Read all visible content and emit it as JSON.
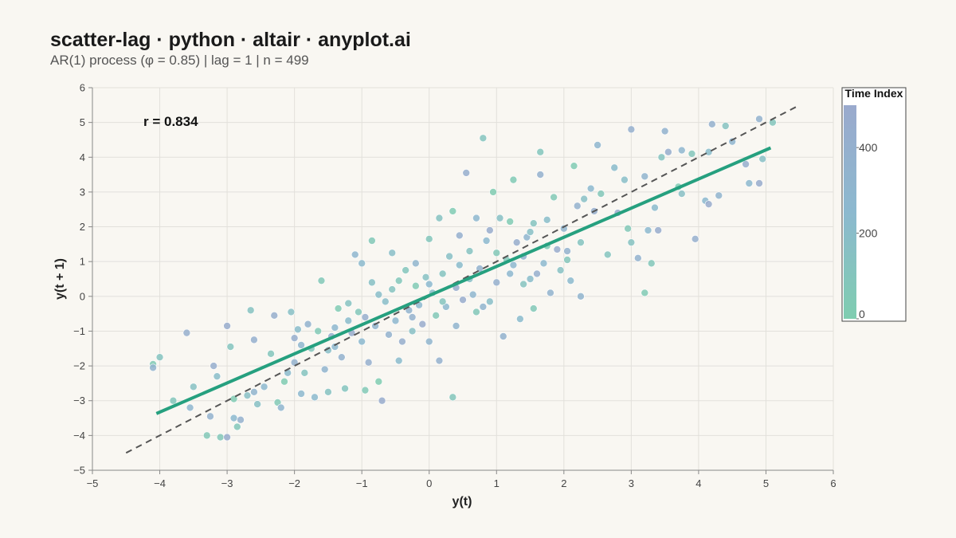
{
  "title": "scatter-lag · python · altair · anyplot.ai",
  "subtitle": "AR(1) process (φ = 0.85) | lag = 1 | n = 499",
  "chart_data": {
    "type": "scatter",
    "xlabel": "y(t)",
    "ylabel": "y(t + 1)",
    "xlim": [
      -5,
      6
    ],
    "ylim": [
      -5,
      6
    ],
    "x_ticks": [
      -5,
      -4,
      -3,
      -2,
      -1,
      0,
      1,
      2,
      3,
      4,
      5,
      6
    ],
    "y_ticks": [
      -5,
      -4,
      -3,
      -2,
      -1,
      0,
      1,
      2,
      3,
      4,
      5,
      6
    ],
    "x_tick_labels": [
      "−5",
      "−4",
      "−3",
      "−2",
      "−1",
      "0",
      "1",
      "2",
      "3",
      "4",
      "5",
      "6"
    ],
    "y_tick_labels": [
      "−5",
      "−4",
      "−3",
      "−2",
      "−1",
      "0",
      "1",
      "2",
      "3",
      "4",
      "5",
      "6"
    ],
    "grid": true,
    "annotation": "r = 0.834",
    "legend": {
      "title": "Time Index",
      "position": "right",
      "min": 0,
      "max": 499,
      "ticks": [
        0,
        200,
        400
      ],
      "colors": [
        "#7fcdb0",
        "#8cb9cf",
        "#9aaacd"
      ]
    },
    "reference_line": {
      "label": "y = x",
      "from": [
        -4.5,
        -4.5
      ],
      "to": [
        5.5,
        5.5
      ],
      "color": "#555555",
      "dashed": true
    },
    "regression_line": {
      "from": [
        -4.05,
        -3.37
      ],
      "to": [
        5.07,
        4.27
      ],
      "color": "#26a07f"
    },
    "points": [
      {
        "x": -4.1,
        "y": -1.95,
        "t": 40
      },
      {
        "x": -4.1,
        "y": -2.05,
        "t": 350
      },
      {
        "x": -4.0,
        "y": -1.75,
        "t": 120
      },
      {
        "x": -3.8,
        "y": -3.0,
        "t": 90
      },
      {
        "x": -3.6,
        "y": -1.05,
        "t": 420
      },
      {
        "x": -3.55,
        "y": -3.2,
        "t": 300
      },
      {
        "x": -3.5,
        "y": -2.6,
        "t": 150
      },
      {
        "x": -3.3,
        "y": -4.0,
        "t": 60
      },
      {
        "x": -3.25,
        "y": -3.45,
        "t": 380
      },
      {
        "x": -3.2,
        "y": -2.0,
        "t": 430
      },
      {
        "x": -3.15,
        "y": -2.3,
        "t": 200
      },
      {
        "x": -3.1,
        "y": -4.05,
        "t": 70
      },
      {
        "x": -3.0,
        "y": -4.05,
        "t": 460
      },
      {
        "x": -3.0,
        "y": -0.85,
        "t": 470
      },
      {
        "x": -2.95,
        "y": -1.45,
        "t": 110
      },
      {
        "x": -2.9,
        "y": -3.5,
        "t": 250
      },
      {
        "x": -2.9,
        "y": -2.95,
        "t": 30
      },
      {
        "x": -2.85,
        "y": -3.75,
        "t": 80
      },
      {
        "x": -2.8,
        "y": -3.55,
        "t": 400
      },
      {
        "x": -2.7,
        "y": -2.85,
        "t": 180
      },
      {
        "x": -2.65,
        "y": -0.4,
        "t": 140
      },
      {
        "x": -2.6,
        "y": -2.75,
        "t": 330
      },
      {
        "x": -2.55,
        "y": -3.1,
        "t": 160
      },
      {
        "x": -2.6,
        "y": -1.25,
        "t": 410
      },
      {
        "x": -2.45,
        "y": -2.6,
        "t": 270
      },
      {
        "x": -2.35,
        "y": -1.65,
        "t": 100
      },
      {
        "x": -2.3,
        "y": -0.55,
        "t": 440
      },
      {
        "x": -2.25,
        "y": -3.05,
        "t": 50
      },
      {
        "x": -2.2,
        "y": -3.2,
        "t": 310
      },
      {
        "x": -2.15,
        "y": -2.45,
        "t": 20
      },
      {
        "x": -2.1,
        "y": -2.2,
        "t": 230
      },
      {
        "x": -2.05,
        "y": -0.45,
        "t": 170
      },
      {
        "x": -2.0,
        "y": -1.9,
        "t": 390
      },
      {
        "x": -2.0,
        "y": -1.2,
        "t": 450
      },
      {
        "x": -1.95,
        "y": -0.95,
        "t": 210
      },
      {
        "x": -1.9,
        "y": -2.8,
        "t": 260
      },
      {
        "x": -1.85,
        "y": -2.2,
        "t": 120
      },
      {
        "x": -1.8,
        "y": -0.8,
        "t": 360
      },
      {
        "x": -1.75,
        "y": -1.5,
        "t": 90
      },
      {
        "x": -1.7,
        "y": -2.9,
        "t": 240
      },
      {
        "x": -1.6,
        "y": 0.45,
        "t": 60
      },
      {
        "x": -1.55,
        "y": -2.1,
        "t": 340
      },
      {
        "x": -1.5,
        "y": -1.55,
        "t": 190
      },
      {
        "x": -1.5,
        "y": -2.75,
        "t": 140
      },
      {
        "x": -1.45,
        "y": -1.15,
        "t": 420
      },
      {
        "x": -1.4,
        "y": -0.9,
        "t": 280
      },
      {
        "x": -1.35,
        "y": -0.35,
        "t": 30
      },
      {
        "x": -1.3,
        "y": -1.75,
        "t": 370
      },
      {
        "x": -1.25,
        "y": -2.65,
        "t": 110
      },
      {
        "x": -1.2,
        "y": -0.7,
        "t": 220
      },
      {
        "x": -1.15,
        "y": -1.05,
        "t": 480
      },
      {
        "x": -1.1,
        "y": 1.2,
        "t": 300
      },
      {
        "x": -1.05,
        "y": -0.45,
        "t": 80
      },
      {
        "x": -1.0,
        "y": -1.3,
        "t": 250
      },
      {
        "x": -0.95,
        "y": -2.7,
        "t": 50
      },
      {
        "x": -0.9,
        "y": -1.9,
        "t": 410
      },
      {
        "x": -0.85,
        "y": 0.4,
        "t": 160
      },
      {
        "x": -0.8,
        "y": -0.85,
        "t": 330
      },
      {
        "x": -0.75,
        "y": -2.45,
        "t": 10
      },
      {
        "x": -0.7,
        "y": -3.0,
        "t": 460
      },
      {
        "x": -0.65,
        "y": -0.15,
        "t": 200
      },
      {
        "x": -0.6,
        "y": -1.1,
        "t": 380
      },
      {
        "x": -0.55,
        "y": 0.2,
        "t": 130
      },
      {
        "x": -0.5,
        "y": -0.7,
        "t": 290
      },
      {
        "x": -0.45,
        "y": -1.85,
        "t": 230
      },
      {
        "x": -0.4,
        "y": -1.3,
        "t": 440
      },
      {
        "x": -0.35,
        "y": 0.75,
        "t": 100
      },
      {
        "x": -0.3,
        "y": -0.4,
        "t": 350
      },
      {
        "x": -0.25,
        "y": -1.0,
        "t": 180
      },
      {
        "x": -0.2,
        "y": 0.3,
        "t": 40
      },
      {
        "x": -0.15,
        "y": -0.25,
        "t": 270
      },
      {
        "x": -0.1,
        "y": -0.8,
        "t": 490
      },
      {
        "x": -0.05,
        "y": 0.55,
        "t": 150
      },
      {
        "x": 0.0,
        "y": -1.3,
        "t": 320
      },
      {
        "x": 0.05,
        "y": 0.1,
        "t": 210
      },
      {
        "x": 0.1,
        "y": -0.55,
        "t": 60
      },
      {
        "x": 0.15,
        "y": -1.85,
        "t": 400
      },
      {
        "x": 0.2,
        "y": 0.65,
        "t": 120
      },
      {
        "x": 0.25,
        "y": -0.3,
        "t": 260
      },
      {
        "x": 0.3,
        "y": 1.15,
        "t": 170
      },
      {
        "x": 0.35,
        "y": 2.45,
        "t": 30
      },
      {
        "x": 0.35,
        "y": -2.9,
        "t": 90
      },
      {
        "x": 0.4,
        "y": -0.85,
        "t": 340
      },
      {
        "x": 0.45,
        "y": 0.9,
        "t": 220
      },
      {
        "x": 0.5,
        "y": -0.1,
        "t": 470
      },
      {
        "x": 0.55,
        "y": 3.55,
        "t": 430
      },
      {
        "x": 0.6,
        "y": 1.3,
        "t": 140
      },
      {
        "x": 0.65,
        "y": 0.05,
        "t": 300
      },
      {
        "x": 0.7,
        "y": -0.45,
        "t": 70
      },
      {
        "x": 0.75,
        "y": 0.8,
        "t": 380
      },
      {
        "x": 0.8,
        "y": 4.55,
        "t": 110
      },
      {
        "x": 0.85,
        "y": 1.6,
        "t": 250
      },
      {
        "x": 0.9,
        "y": -0.15,
        "t": 190
      },
      {
        "x": 0.95,
        "y": 3.0,
        "t": 20
      },
      {
        "x": 1.0,
        "y": 0.4,
        "t": 410
      },
      {
        "x": 1.05,
        "y": 2.25,
        "t": 160
      },
      {
        "x": 1.1,
        "y": -1.15,
        "t": 360
      },
      {
        "x": 1.15,
        "y": 1.05,
        "t": 80
      },
      {
        "x": 1.2,
        "y": 0.65,
        "t": 290
      },
      {
        "x": 1.25,
        "y": 3.35,
        "t": 40
      },
      {
        "x": 1.3,
        "y": 1.55,
        "t": 450
      },
      {
        "x": 1.35,
        "y": -0.65,
        "t": 230
      },
      {
        "x": 1.4,
        "y": 0.35,
        "t": 130
      },
      {
        "x": 1.45,
        "y": 1.7,
        "t": 310
      },
      {
        "x": 1.5,
        "y": 1.85,
        "t": 180
      },
      {
        "x": 1.55,
        "y": -0.35,
        "t": 60
      },
      {
        "x": 1.6,
        "y": 0.65,
        "t": 420
      },
      {
        "x": 1.65,
        "y": 4.15,
        "t": 100
      },
      {
        "x": 1.65,
        "y": 3.5,
        "t": 400
      },
      {
        "x": 1.7,
        "y": 0.95,
        "t": 270
      },
      {
        "x": 1.75,
        "y": 2.2,
        "t": 200
      },
      {
        "x": 1.8,
        "y": 0.1,
        "t": 350
      },
      {
        "x": 1.85,
        "y": 2.85,
        "t": 50
      },
      {
        "x": 1.9,
        "y": 1.35,
        "t": 480
      },
      {
        "x": 1.95,
        "y": 0.75,
        "t": 150
      },
      {
        "x": 2.0,
        "y": 1.95,
        "t": 320
      },
      {
        "x": 2.05,
        "y": 1.05,
        "t": 90
      },
      {
        "x": 2.1,
        "y": 0.45,
        "t": 240
      },
      {
        "x": 2.15,
        "y": 3.75,
        "t": 30
      },
      {
        "x": 2.2,
        "y": 2.6,
        "t": 390
      },
      {
        "x": 2.25,
        "y": 1.55,
        "t": 120
      },
      {
        "x": 2.25,
        "y": 0.0,
        "t": 340
      },
      {
        "x": 2.3,
        "y": 2.8,
        "t": 170
      },
      {
        "x": 2.4,
        "y": 3.1,
        "t": 260
      },
      {
        "x": 2.45,
        "y": 2.45,
        "t": 440
      },
      {
        "x": 2.5,
        "y": 4.35,
        "t": 300
      },
      {
        "x": 2.55,
        "y": 2.95,
        "t": 70
      },
      {
        "x": 2.65,
        "y": 1.2,
        "t": 110
      },
      {
        "x": 2.75,
        "y": 3.7,
        "t": 220
      },
      {
        "x": 2.8,
        "y": 2.4,
        "t": 490
      },
      {
        "x": 2.9,
        "y": 3.35,
        "t": 190
      },
      {
        "x": 2.95,
        "y": 1.95,
        "t": 60
      },
      {
        "x": 3.0,
        "y": 4.8,
        "t": 410
      },
      {
        "x": 3.0,
        "y": 1.55,
        "t": 140
      },
      {
        "x": 3.1,
        "y": 1.1,
        "t": 380
      },
      {
        "x": 3.2,
        "y": 3.45,
        "t": 330
      },
      {
        "x": 3.2,
        "y": 0.1,
        "t": 40
      },
      {
        "x": 3.25,
        "y": 1.9,
        "t": 270
      },
      {
        "x": 3.3,
        "y": 0.95,
        "t": 80
      },
      {
        "x": 3.35,
        "y": 2.55,
        "t": 230
      },
      {
        "x": 3.4,
        "y": 1.9,
        "t": 460
      },
      {
        "x": 3.45,
        "y": 4.0,
        "t": 120
      },
      {
        "x": 3.5,
        "y": 4.75,
        "t": 360
      },
      {
        "x": 3.55,
        "y": 4.15,
        "t": 450
      },
      {
        "x": 3.7,
        "y": 3.15,
        "t": 30
      },
      {
        "x": 3.75,
        "y": 4.2,
        "t": 300
      },
      {
        "x": 3.75,
        "y": 2.95,
        "t": 170
      },
      {
        "x": 3.9,
        "y": 4.1,
        "t": 90
      },
      {
        "x": 3.95,
        "y": 1.65,
        "t": 420
      },
      {
        "x": 4.1,
        "y": 2.75,
        "t": 250
      },
      {
        "x": 4.15,
        "y": 2.65,
        "t": 480
      },
      {
        "x": 4.15,
        "y": 4.15,
        "t": 210
      },
      {
        "x": 4.2,
        "y": 4.95,
        "t": 400
      },
      {
        "x": 4.3,
        "y": 2.9,
        "t": 340
      },
      {
        "x": 4.4,
        "y": 4.9,
        "t": 140
      },
      {
        "x": 4.5,
        "y": 4.45,
        "t": 310
      },
      {
        "x": 4.7,
        "y": 3.8,
        "t": 430
      },
      {
        "x": 4.75,
        "y": 3.25,
        "t": 260
      },
      {
        "x": 4.9,
        "y": 5.1,
        "t": 380
      },
      {
        "x": 4.9,
        "y": 3.25,
        "t": 470
      },
      {
        "x": 4.95,
        "y": 3.95,
        "t": 180
      },
      {
        "x": 5.1,
        "y": 5.0,
        "t": 100
      },
      {
        "x": -1.0,
        "y": 0.95,
        "t": 240
      },
      {
        "x": -0.85,
        "y": 1.6,
        "t": 60
      },
      {
        "x": -0.55,
        "y": 1.25,
        "t": 190
      },
      {
        "x": -0.2,
        "y": 0.95,
        "t": 320
      },
      {
        "x": 0.0,
        "y": 1.65,
        "t": 90
      },
      {
        "x": 0.15,
        "y": 2.25,
        "t": 140
      },
      {
        "x": 0.45,
        "y": 1.75,
        "t": 410
      },
      {
        "x": 0.7,
        "y": 2.25,
        "t": 280
      },
      {
        "x": 0.9,
        "y": 1.9,
        "t": 460
      },
      {
        "x": 1.2,
        "y": 2.15,
        "t": 30
      },
      {
        "x": 1.4,
        "y": 1.15,
        "t": 370
      },
      {
        "x": 1.55,
        "y": 2.1,
        "t": 120
      },
      {
        "x": -1.9,
        "y": -1.4,
        "t": 300
      },
      {
        "x": -1.65,
        "y": -1.0,
        "t": 50
      },
      {
        "x": -1.4,
        "y": -1.45,
        "t": 270
      },
      {
        "x": -1.2,
        "y": -0.2,
        "t": 140
      },
      {
        "x": -0.95,
        "y": -0.6,
        "t": 430
      },
      {
        "x": -0.75,
        "y": 0.05,
        "t": 200
      },
      {
        "x": -0.45,
        "y": 0.45,
        "t": 80
      },
      {
        "x": -0.25,
        "y": -0.6,
        "t": 390
      },
      {
        "x": 0.0,
        "y": 0.35,
        "t": 250
      },
      {
        "x": 0.2,
        "y": -0.15,
        "t": 110
      },
      {
        "x": 0.4,
        "y": 0.25,
        "t": 460
      },
      {
        "x": 0.6,
        "y": 0.5,
        "t": 170
      },
      {
        "x": 0.8,
        "y": -0.3,
        "t": 330
      },
      {
        "x": 1.0,
        "y": 1.25,
        "t": 60
      },
      {
        "x": 1.25,
        "y": 0.9,
        "t": 290
      },
      {
        "x": 1.5,
        "y": 0.5,
        "t": 210
      },
      {
        "x": 1.75,
        "y": 1.45,
        "t": 40
      },
      {
        "x": 2.05,
        "y": 1.3,
        "t": 370
      }
    ]
  }
}
